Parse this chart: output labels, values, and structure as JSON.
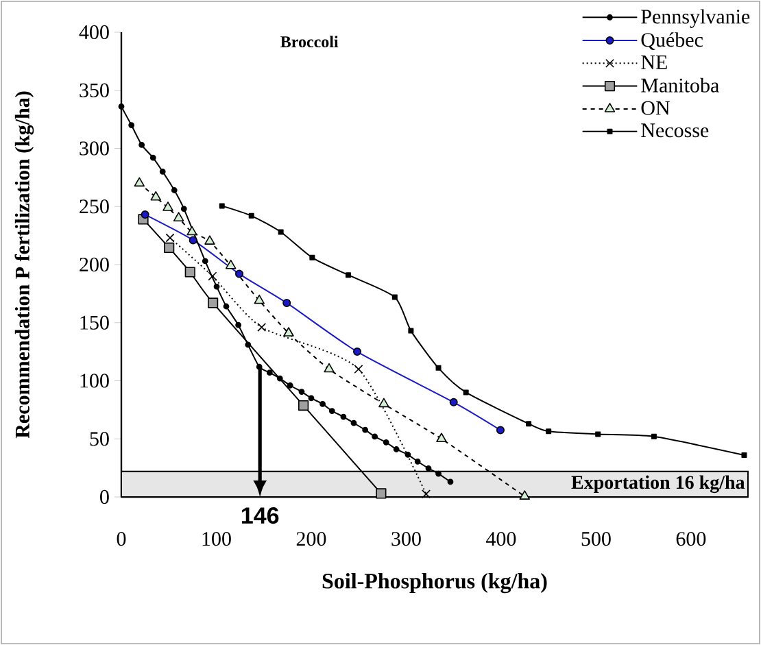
{
  "chart_data": {
    "type": "line",
    "title": "Broccoli",
    "xlabel": "Soil-Phosphorus (kg/ha)",
    "ylabel": "Recommendation P fertilization (kg/ha)",
    "xlim": [
      0,
      660
    ],
    "ylim": [
      0,
      400
    ],
    "xticks": [
      0,
      100,
      200,
      300,
      400,
      500,
      600
    ],
    "yticks": [
      0,
      50,
      100,
      150,
      200,
      250,
      300,
      350,
      400
    ],
    "grid": false,
    "legend": "top right",
    "series": [
      {
        "name": "Pennsylvanie",
        "color": "#000000",
        "marker": "circle",
        "line_style": "solid",
        "x": [
          0,
          10.6,
          21.4,
          33.4,
          43.5,
          55.8,
          65.9,
          88.3,
          100.4,
          110.5,
          123.2,
          133.4,
          145.3,
          156.2,
          167,
          177.8,
          189.9,
          200,
          212,
          221.9,
          233.9,
          244.8,
          256.8,
          266.9,
          278.9,
          289.7,
          301.8,
          312.1,
          323.5,
          334,
          346.6
        ],
        "values": [
          336,
          320,
          303,
          292,
          280,
          264,
          248,
          203,
          181,
          164,
          148,
          131,
          112,
          107,
          102,
          96,
          90.5,
          85,
          80,
          74,
          69,
          63.6,
          57.7,
          52,
          47,
          41,
          36.4,
          30.5,
          24.6,
          20,
          13
        ]
      },
      {
        "name": "Québec",
        "color": "#1a1ac8",
        "marker": "circle",
        "line_style": "solid",
        "x": [
          25,
          75.6,
          124.2,
          174.2,
          248.4,
          350,
          399.3
        ],
        "values": [
          243,
          221,
          192,
          167,
          125,
          81.5,
          57.5
        ]
      },
      {
        "name": "NE",
        "color": "#000000",
        "marker": "cross",
        "line_style": "dotted",
        "x": [
          51.3,
          96,
          147.8,
          249.8,
          321
        ],
        "values": [
          223,
          190,
          146,
          110,
          2.5
        ]
      },
      {
        "name": "Manitoba",
        "color": "#000000",
        "marker": "square",
        "line_style": "solid",
        "x": [
          23.1,
          50.3,
          72.4,
          96.5,
          191.8,
          273.6
        ],
        "values": [
          239,
          214.5,
          193.5,
          167,
          78.7,
          3
        ]
      },
      {
        "name": "ON",
        "color": "#000000",
        "marker": "triangle",
        "line_style": "dashed",
        "x": [
          19,
          36.3,
          49.1,
          60.4,
          74.4,
          93.1,
          115.3,
          145.3,
          176.2,
          218.8,
          276.5,
          337.2,
          424.8
        ],
        "values": [
          270,
          258,
          249,
          240,
          228,
          220,
          199,
          169,
          141,
          110,
          80,
          50,
          0.5
        ]
      },
      {
        "name": "Necosse",
        "color": "#000000",
        "marker": "square",
        "line_style": "solid",
        "x": [
          106,
          137,
          168,
          201,
          239,
          288,
          305,
          334,
          363,
          429,
          450,
          502,
          561,
          656
        ],
        "values": [
          250.5,
          242,
          228,
          206,
          191,
          172,
          143,
          111,
          90,
          63,
          56.5,
          54,
          52,
          36
        ]
      }
    ],
    "bands": [
      {
        "axis": "y",
        "from": 0,
        "to": 22,
        "label": "Exportation 16 kg/ha",
        "color": "#e6e6e6"
      }
    ],
    "annotations": [
      {
        "text": "146",
        "x": 146,
        "y": 112
      }
    ]
  }
}
